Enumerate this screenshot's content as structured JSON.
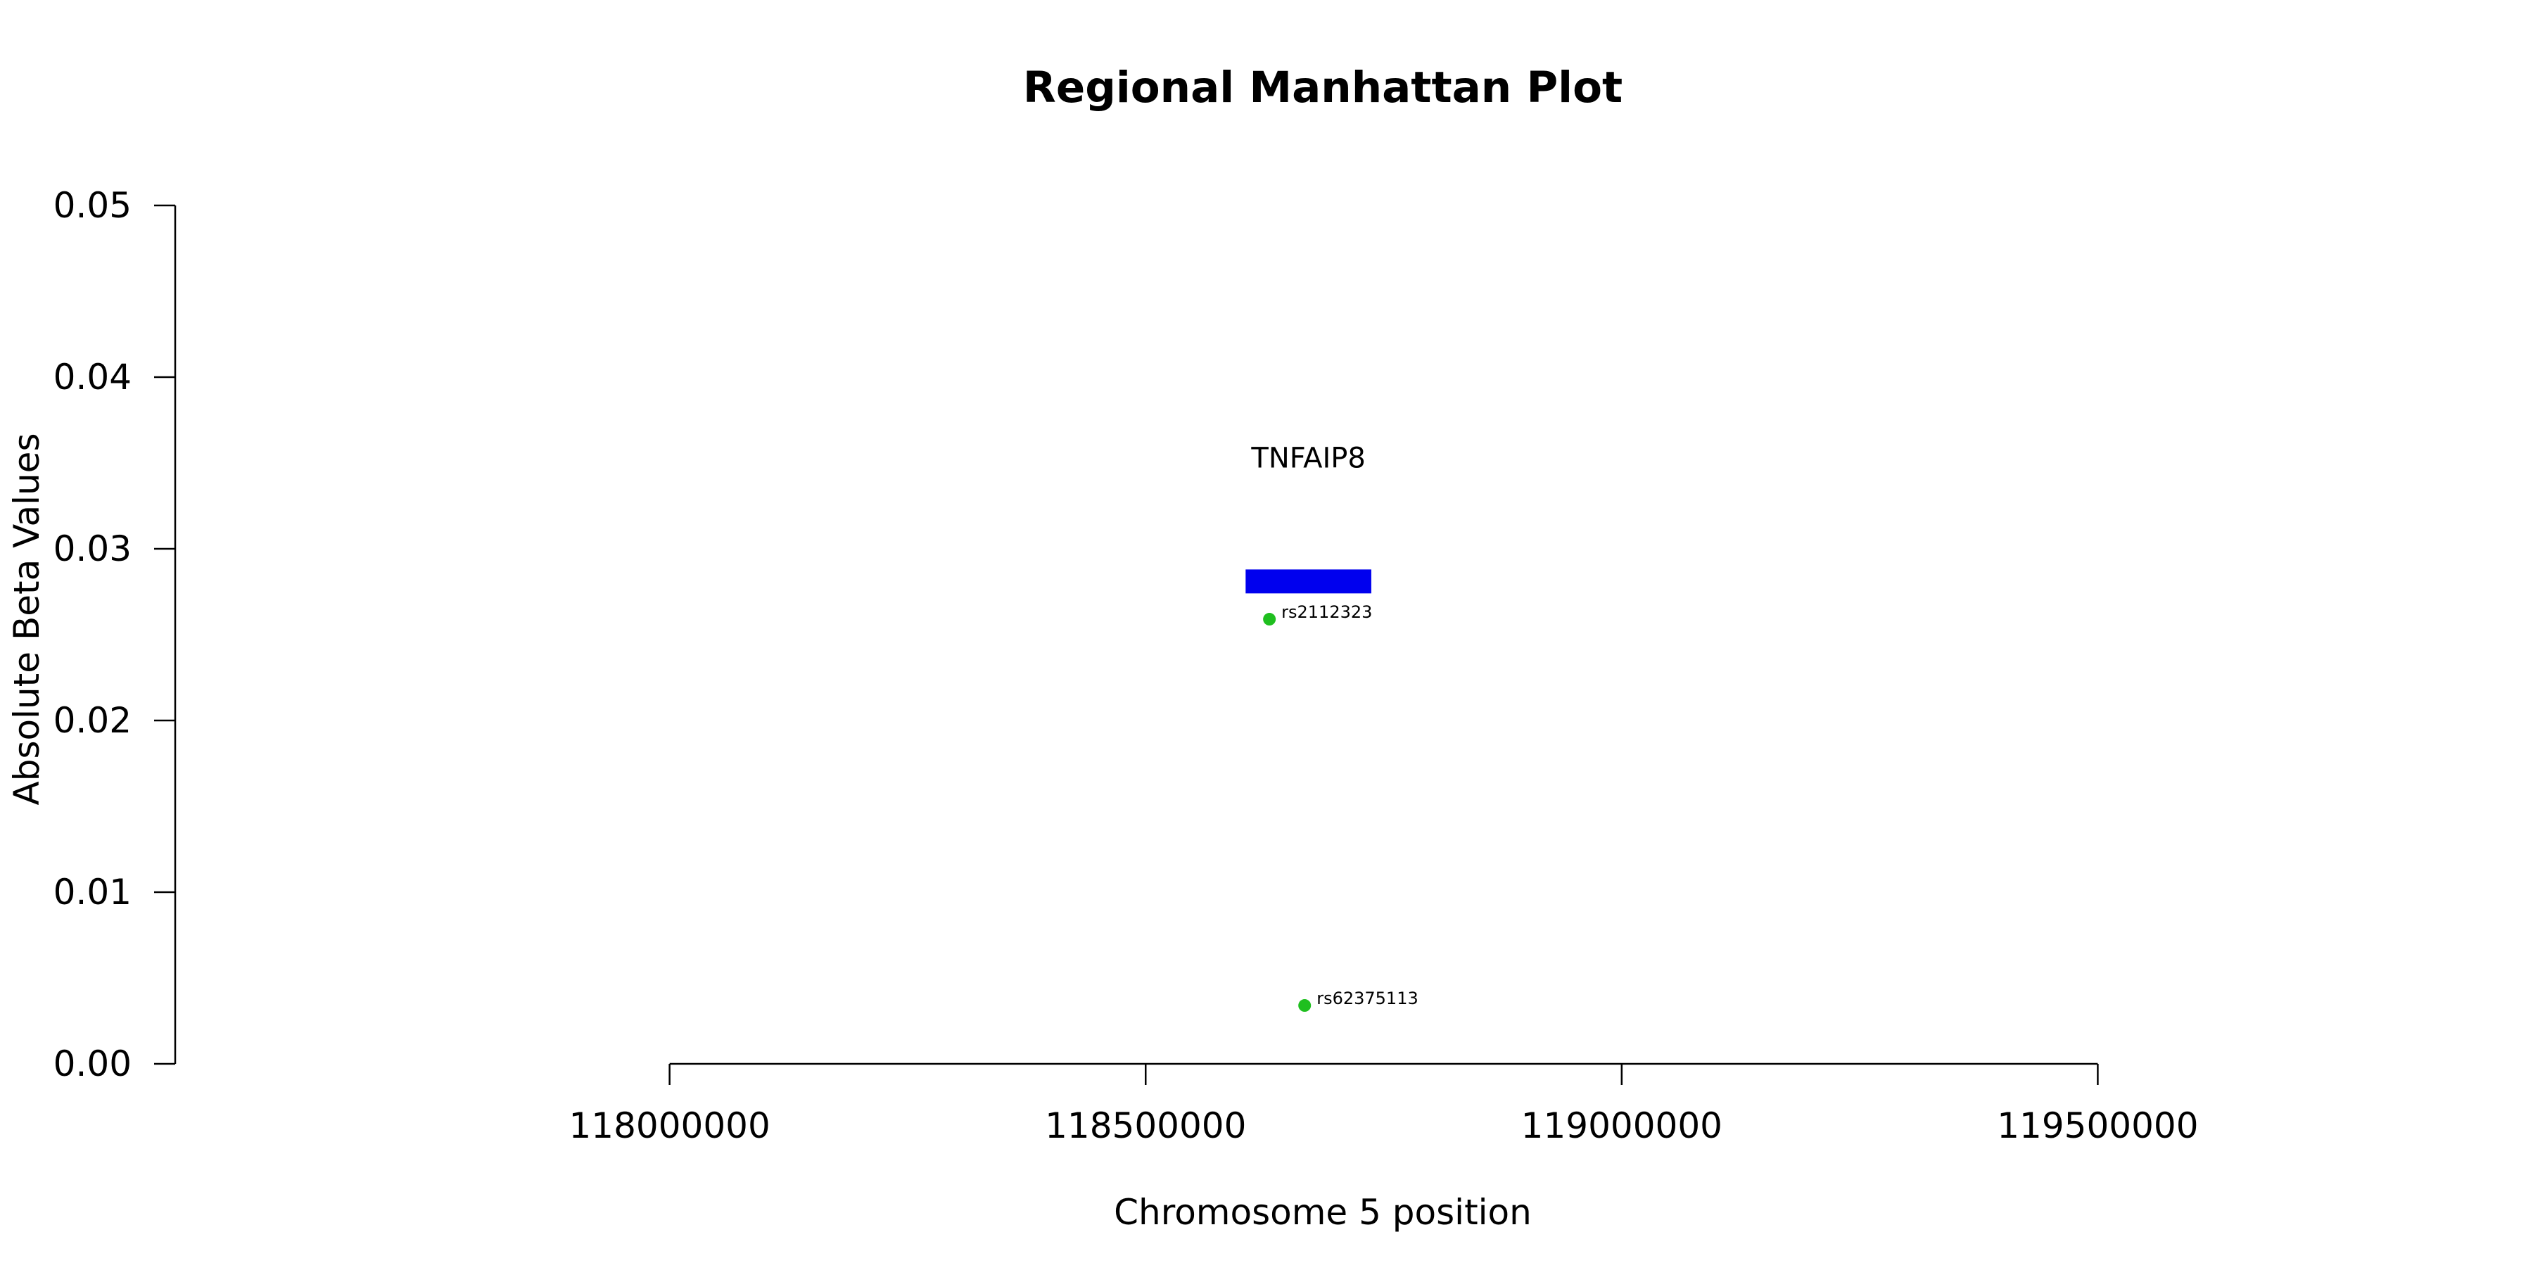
{
  "chart_data": {
    "type": "scatter",
    "title": "Regional Manhattan Plot",
    "xlabel": "Chromosome 5 position",
    "ylabel": "Absolute Beta Values",
    "xlim": [
      117480000,
      120000000
    ],
    "ylim": [
      0,
      0.05
    ],
    "x_ticks": [
      118000000,
      118500000,
      119000000,
      119500000
    ],
    "x_tick_labels": [
      "118000000",
      "118500000",
      "119000000",
      "119500000"
    ],
    "y_ticks": [
      0,
      0.01,
      0.02,
      0.03,
      0.04,
      0.05
    ],
    "y_tick_labels": [
      "0.00",
      "0.01",
      "0.02",
      "0.03",
      "0.04",
      "0.05"
    ],
    "grid": false,
    "points": [
      {
        "x": 118630000,
        "y": 0.0259,
        "label": "rs2112323",
        "color": "#1fbf1f"
      },
      {
        "x": 118667000,
        "y": 0.0034,
        "label": "rs62375113",
        "color": "#1fbf1f"
      }
    ],
    "genes": [
      {
        "name": "TNFAIP8",
        "start": 118605000,
        "end": 118737000,
        "y": 0.0281,
        "color": "#0000ee"
      }
    ]
  }
}
